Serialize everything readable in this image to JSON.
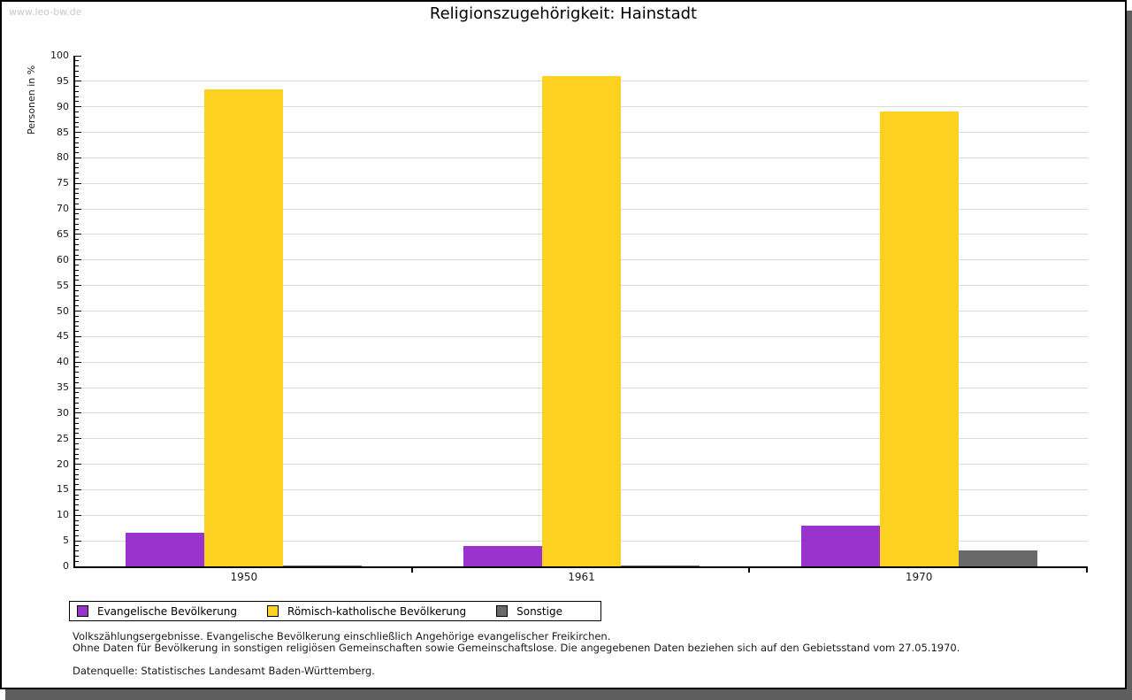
{
  "watermark": "www.leo-bw.de",
  "title": "Religionszugehörigkeit: Hainstadt",
  "chart_data": {
    "type": "bar",
    "title": "Religionszugehörigkeit: Hainstadt",
    "xlabel": "",
    "ylabel": "Personen in %",
    "ylim": [
      0,
      100
    ],
    "ytick_major_step": 5,
    "ytick_minor_step": 1,
    "grid": true,
    "legend_position": "bottom",
    "categories": [
      "1950",
      "1961",
      "1970"
    ],
    "series": [
      {
        "name": "Evangelische Bevölkerung",
        "color": "#9933cc",
        "values": [
          6.5,
          4.0,
          7.9
        ]
      },
      {
        "name": "Römisch-katholische Bevölkerung",
        "color": "#fcd120",
        "values": [
          93.5,
          96.0,
          89.0
        ]
      },
      {
        "name": "Sonstige",
        "color": "#696969",
        "values": [
          0.1,
          0.2,
          3.2
        ]
      }
    ]
  },
  "footnotes": {
    "line1": "Volkszählungsergebnisse. Evangelische Bevölkerung einschließlich Angehörige evangelischer Freikirchen.",
    "line2": "Ohne Daten für Bevölkerung in sonstigen religiösen Gemeinschaften sowie Gemeinschaftslose. Die angegebenen Daten beziehen sich auf den Gebietsstand vom 27.05.1970.",
    "source": "Datenquelle: Statistisches Landesamt Baden-Württemberg."
  },
  "colors": {
    "gridline": "#d9d9d9",
    "axis": "#000000",
    "shadow": "#5e5e5e",
    "watermark": "#c9c9c9"
  }
}
